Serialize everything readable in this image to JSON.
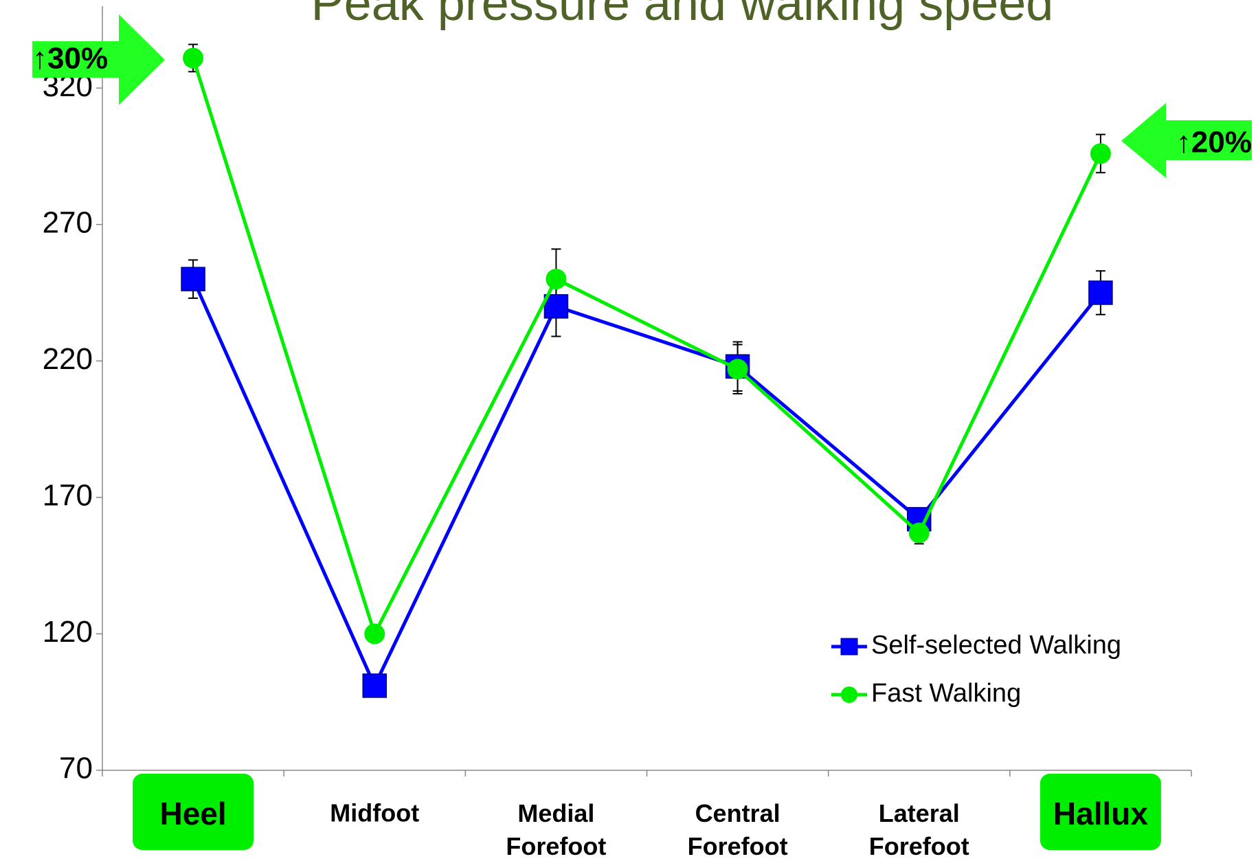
{
  "chart_data": {
    "type": "line",
    "title": "Peak pressure and walking speed",
    "categories": [
      "Heel",
      "Midfoot",
      "Medial Forefoot",
      "Central Forefoot",
      "Lateral Forefoot",
      "Hallux"
    ],
    "highlighted": [
      0,
      5
    ],
    "series": [
      {
        "name": "Self-selected Walking",
        "color": "#0000ff",
        "marker": "square",
        "values": [
          250,
          101,
          240,
          218,
          162,
          245
        ],
        "errors": [
          7,
          4,
          11,
          9,
          4,
          8
        ]
      },
      {
        "name": "Fast Walking",
        "color": "#00ee00",
        "marker": "circle",
        "values": [
          331,
          120,
          250,
          217,
          157,
          296
        ],
        "errors": [
          5,
          3,
          11,
          9,
          4,
          7
        ]
      }
    ],
    "ylim": [
      70,
      350
    ],
    "yticks": [
      70,
      120,
      170,
      220,
      270,
      320
    ],
    "annotations": [
      "↑30%",
      "↑20%"
    ]
  }
}
